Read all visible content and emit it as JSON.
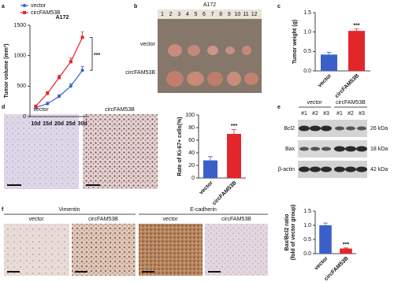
{
  "panel_labels": [
    "a",
    "b",
    "c",
    "d",
    "e",
    "f"
  ],
  "chart_data": [
    {
      "type": "line",
      "title": "A172",
      "ylabel": "Tumor volume (mm³)",
      "categories": [
        "10d",
        "15d",
        "20d",
        "25d",
        "30d"
      ],
      "series": [
        {
          "name": "vector",
          "color": "#3b5fc9",
          "marker": "circle",
          "values": [
            150,
            210,
            330,
            500,
            760
          ],
          "errors": [
            20,
            25,
            30,
            40,
            60
          ]
        },
        {
          "name": "circFAM53B",
          "color": "#e3262b",
          "marker": "square",
          "values": [
            170,
            380,
            640,
            900,
            1300
          ],
          "errors": [
            20,
            30,
            40,
            60,
            90
          ]
        }
      ],
      "ylim": [
        0,
        1500
      ],
      "yticks": [
        0,
        500,
        1000,
        1500
      ],
      "annotation": "***",
      "legend": "upper left"
    },
    {
      "type": "bar",
      "ylabel": "Tumor weight (g)",
      "categories": [
        "vector",
        "circFAM53B"
      ],
      "values": [
        0.42,
        1.03
      ],
      "errors": [
        0.06,
        0.05
      ],
      "colors": [
        "#3b5fc9",
        "#e3262b"
      ],
      "ylim": [
        0,
        1.5
      ],
      "yticks": [
        {
          "value": 0,
          "label": "0.0"
        },
        0.5,
        {
          "value": 1,
          "label": "1.0"
        },
        1.5
      ],
      "annotation": "***"
    },
    {
      "type": "bar",
      "ylabel": "Rate of Ki-67+ cells(%)",
      "categories": [
        "vector",
        "circFAM53B"
      ],
      "values": [
        28,
        70
      ],
      "errors": [
        6,
        7
      ],
      "colors": [
        "#3b5fc9",
        "#e3262b"
      ],
      "ylim": [
        0,
        100
      ],
      "yticks": [
        0,
        20,
        40,
        60,
        80,
        100
      ],
      "annotation": "***"
    },
    {
      "type": "bar",
      "ylabel": [
        "Bax/Bcl2 ratio",
        "(fold of vector group)"
      ],
      "categories": [
        "vector",
        "circFAM53B"
      ],
      "values": [
        1.0,
        0.18
      ],
      "errors": [
        0.08,
        0.02
      ],
      "colors": [
        "#3b5fc9",
        "#e3262b"
      ],
      "ylim": [
        0,
        1.5
      ],
      "yticks": [
        {
          "value": 0,
          "label": "0.0"
        },
        0.5,
        {
          "value": 1,
          "label": "1.0"
        },
        1.5
      ],
      "annotation": "***"
    }
  ],
  "panel_b": {
    "title": "A172",
    "ruler": [
      "1",
      "2",
      "3",
      "4",
      "5",
      "6",
      "7",
      "8",
      "9",
      "10",
      "11",
      "12"
    ],
    "rows": [
      "vector",
      "circFAM53B"
    ]
  },
  "panel_d": {
    "images": [
      "vector",
      "circFAM53B"
    ]
  },
  "panel_e": {
    "groups": [
      "vector",
      "circFAM53B"
    ],
    "lanes": [
      "#1",
      "#2",
      "#3",
      "#1",
      "#2",
      "#3"
    ],
    "proteins": [
      "Bcl2",
      "Bax",
      "β-actin"
    ],
    "sizes": [
      "26 kDa",
      "18 kDa",
      "42 kDa"
    ]
  },
  "panel_f": {
    "markers": [
      "Vimentin",
      "E-cadherin"
    ],
    "images": [
      "vector",
      "circFAM53B",
      "vector",
      "circFAM53B"
    ]
  }
}
